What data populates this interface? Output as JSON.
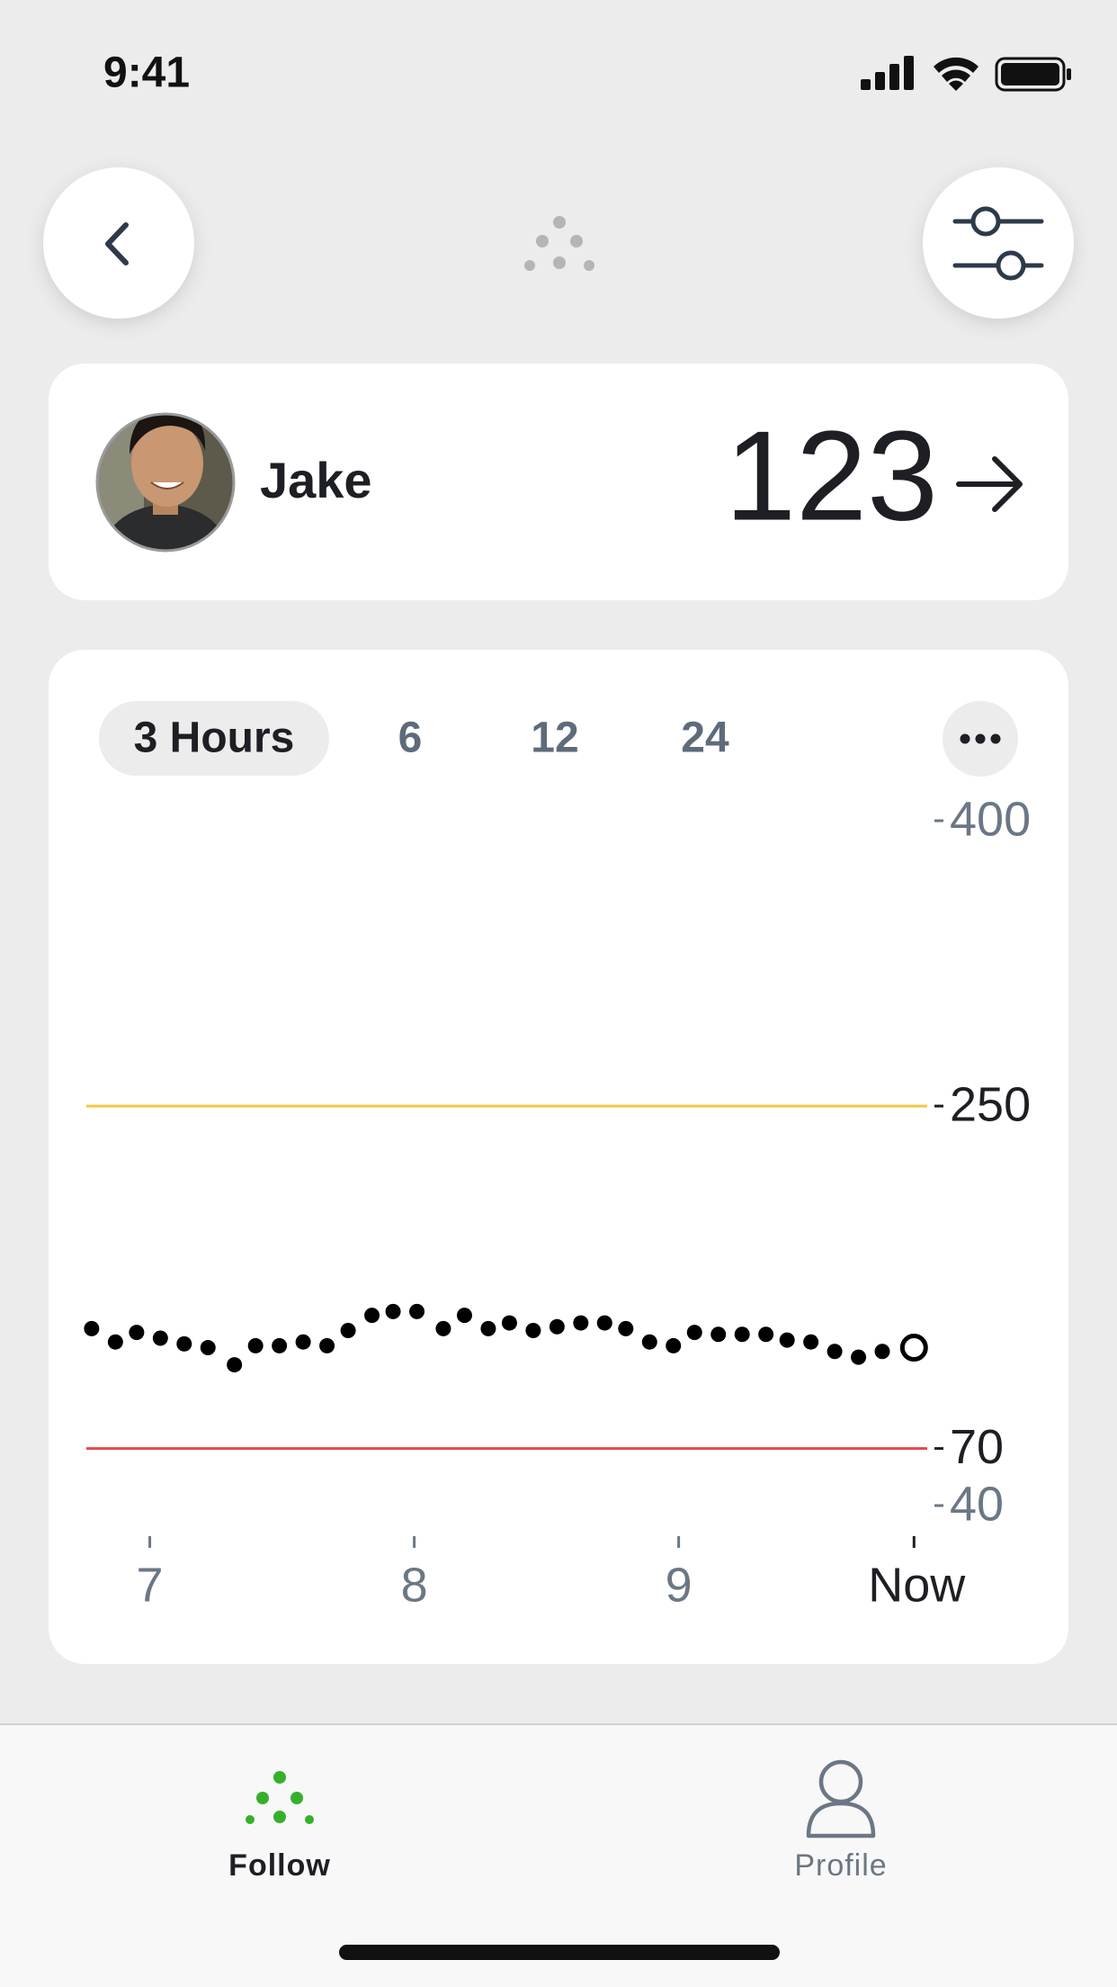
{
  "status_bar": {
    "time": "9:41"
  },
  "profile_card": {
    "name": "Jake",
    "reading": 123
  },
  "range_tabs": [
    "3 Hours",
    "6",
    "12",
    "24"
  ],
  "chart_data": {
    "type": "scatter",
    "color": "#000000",
    "x": [
      6.78,
      6.87,
      6.95,
      7.04,
      7.13,
      7.22,
      7.32,
      7.4,
      7.49,
      7.58,
      7.67,
      7.75,
      7.84,
      7.92,
      8.01,
      8.11,
      8.19,
      8.28,
      8.36,
      8.45,
      8.54,
      8.63,
      8.72,
      8.8,
      8.89,
      8.98,
      9.06,
      9.15,
      9.24,
      9.33,
      9.41,
      9.5,
      9.59,
      9.68,
      9.77,
      9.89
    ],
    "values": [
      133,
      126,
      131,
      128,
      125,
      123,
      114,
      124,
      124,
      126,
      124,
      132,
      140,
      142,
      142,
      133,
      140,
      133,
      136,
      132,
      134,
      136,
      136,
      133,
      126,
      124,
      131,
      130,
      130,
      130,
      127,
      126,
      121,
      118,
      121,
      123
    ],
    "xlim": [
      6.76,
      9.94
    ],
    "ylim": [
      40,
      400
    ],
    "xticks": [
      7,
      8,
      9,
      {
        "value": 9.89,
        "label": "Now"
      }
    ],
    "yticks": [
      400,
      250,
      70,
      40
    ],
    "thresholds": [
      {
        "value": 250,
        "color": "#f5c842"
      },
      {
        "value": 70,
        "color": "#e5484d"
      }
    ]
  },
  "tab_bar": {
    "items": [
      "Follow",
      "Profile"
    ]
  }
}
